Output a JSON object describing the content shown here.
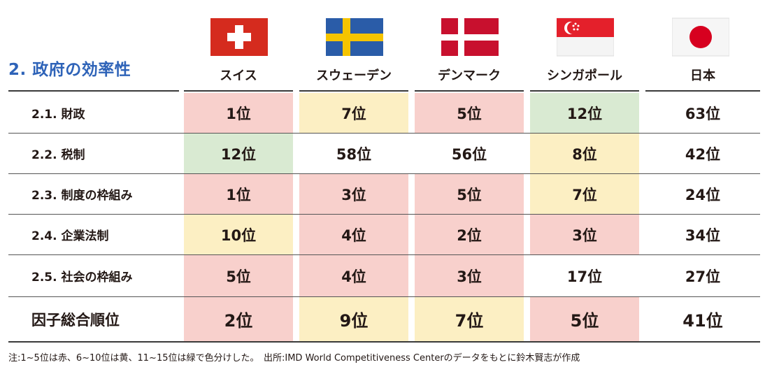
{
  "title": "2. 政府の効率性",
  "countries": [
    {
      "name": "スイス",
      "flag": "switzerland-flag"
    },
    {
      "name": "スウェーデン",
      "flag": "sweden-flag"
    },
    {
      "name": "デンマーク",
      "flag": "denmark-flag"
    },
    {
      "name": "シンガポール",
      "flag": "singapore-flag"
    },
    {
      "name": "日本",
      "flag": "japan-flag"
    }
  ],
  "rows": [
    {
      "label": "2.1. 財政",
      "cells": [
        {
          "value": "1位",
          "color": "red"
        },
        {
          "value": "7位",
          "color": "yellow"
        },
        {
          "value": "5位",
          "color": "red"
        },
        {
          "value": "12位",
          "color": "green"
        },
        {
          "value": "63位",
          "color": "none"
        }
      ]
    },
    {
      "label": "2.2. 税制",
      "cells": [
        {
          "value": "12位",
          "color": "green"
        },
        {
          "value": "58位",
          "color": "none"
        },
        {
          "value": "56位",
          "color": "none"
        },
        {
          "value": "8位",
          "color": "yellow"
        },
        {
          "value": "42位",
          "color": "none"
        }
      ]
    },
    {
      "label": "2.3. 制度の枠組み",
      "cells": [
        {
          "value": "1位",
          "color": "red"
        },
        {
          "value": "3位",
          "color": "red"
        },
        {
          "value": "5位",
          "color": "red"
        },
        {
          "value": "7位",
          "color": "yellow"
        },
        {
          "value": "24位",
          "color": "none"
        }
      ]
    },
    {
      "label": "2.4. 企業法制",
      "cells": [
        {
          "value": "10位",
          "color": "yellow"
        },
        {
          "value": "4位",
          "color": "red"
        },
        {
          "value": "2位",
          "color": "red"
        },
        {
          "value": "3位",
          "color": "red"
        },
        {
          "value": "34位",
          "color": "none"
        }
      ]
    },
    {
      "label": "2.5. 社会の枠組み",
      "cells": [
        {
          "value": "5位",
          "color": "red"
        },
        {
          "value": "4位",
          "color": "red"
        },
        {
          "value": "3位",
          "color": "red"
        },
        {
          "value": "17位",
          "color": "none"
        },
        {
          "value": "27位",
          "color": "none"
        }
      ]
    },
    {
      "label": "因子総合順位",
      "cells": [
        {
          "value": "2位",
          "color": "red"
        },
        {
          "value": "9位",
          "color": "yellow"
        },
        {
          "value": "7位",
          "color": "yellow"
        },
        {
          "value": "5位",
          "color": "red"
        },
        {
          "value": "41位",
          "color": "none"
        }
      ]
    }
  ],
  "note": "注:1~5位は赤、6~10位は黄、11~15位は緑で色分けした。　出所:IMD World Competitiveness Centerのデータをもとに鈴木賢志が作成",
  "colors": {
    "red": "#f8d0cc",
    "yellow": "#fcefc3",
    "green": "#d9ead2",
    "title": "#2e63b8"
  }
}
